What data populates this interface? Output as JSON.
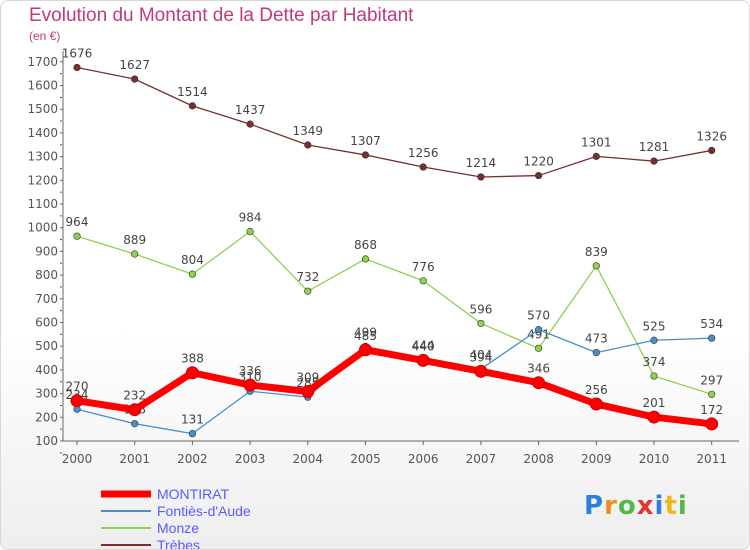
{
  "chart_data": {
    "type": "line",
    "title": "Evolution du Montant de la Dette par Habitant",
    "subtitle": "(en €)",
    "x": [
      "2000",
      "2001",
      "2002",
      "2003",
      "2004",
      "2005",
      "2006",
      "2007",
      "2008",
      "2009",
      "2010",
      "2011"
    ],
    "yticks": [
      100,
      200,
      300,
      400,
      500,
      600,
      700,
      800,
      900,
      1000,
      1100,
      1200,
      1300,
      1400,
      1500,
      1600,
      1700
    ],
    "ylim": [
      100,
      1750
    ],
    "grid": false,
    "legend_position": "bottom-left",
    "series": [
      {
        "name": "MONTIRAT",
        "color": "#ff0000",
        "values": [
          270,
          232,
          388,
          336,
          309,
          485,
          440,
          394,
          346,
          256,
          201,
          172
        ]
      },
      {
        "name": "Fontiès-d'Aude",
        "color": "#4a8fc8",
        "values": [
          234,
          173,
          131,
          310,
          285,
          499,
          444,
          404,
          570,
          473,
          525,
          534
        ]
      },
      {
        "name": "Monze",
        "color": "#8fd14f",
        "values": [
          964,
          889,
          804,
          984,
          732,
          868,
          776,
          596,
          491,
          839,
          374,
          297
        ]
      },
      {
        "name": "Trèbes",
        "color": "#7a2e2e",
        "values": [
          1676,
          1627,
          1514,
          1437,
          1349,
          1307,
          1256,
          1214,
          1220,
          1301,
          1281,
          1326
        ]
      }
    ]
  },
  "logo_text": "Proxiti"
}
